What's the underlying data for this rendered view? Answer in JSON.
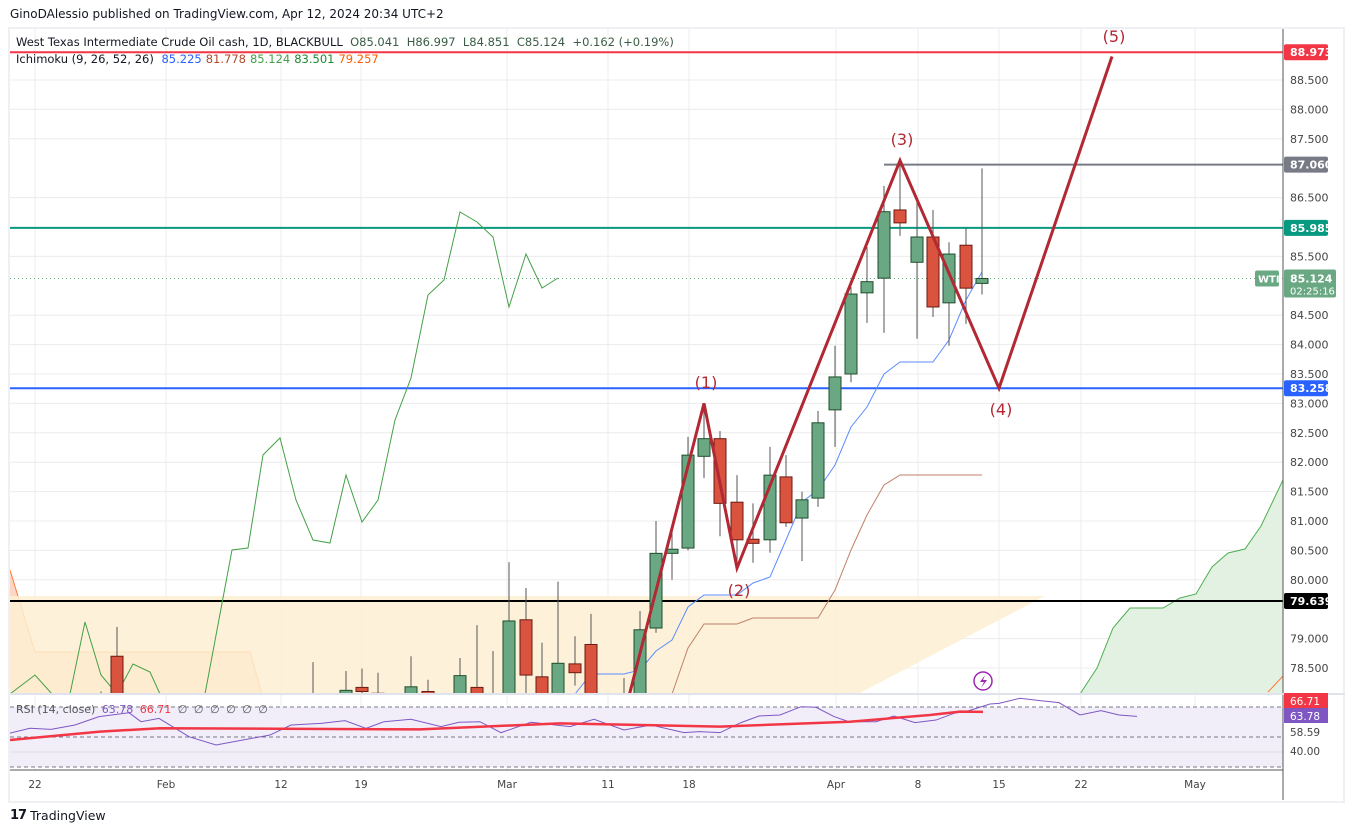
{
  "header": {
    "published": "GinoDAlessio published on TradingView.com, Apr 12, 2024 20:34 UTC+2"
  },
  "legend": {
    "symbol": "West Texas Intermediate Crude Oil cash, 1D, BLACKBULL",
    "open": "O85.041",
    "high": "H86.997",
    "low": "L84.851",
    "close": "C85.124",
    "change": "+0.162 (+0.19%)",
    "ichimoku_label": "Ichimoku (9, 26, 52, 26)",
    "ichimoku_values": [
      {
        "value": "85.225",
        "color": "#2962ff"
      },
      {
        "value": "81.778",
        "color": "#b2492c"
      },
      {
        "value": "85.124",
        "color": "#43a047"
      },
      {
        "value": "83.501",
        "color": "#1b8a2e"
      },
      {
        "value": "79.257",
        "color": "#ff5d00"
      }
    ]
  },
  "price_axis": {
    "ticks": [
      "88.500",
      "88.000",
      "87.500",
      "86.500",
      "85.500",
      "84.500",
      "84.000",
      "83.500",
      "83.000",
      "82.500",
      "82.000",
      "81.500",
      "81.000",
      "80.500",
      "80.000",
      "79.000",
      "78.500"
    ],
    "tick_values": [
      88.5,
      88.0,
      87.5,
      86.5,
      85.5,
      84.5,
      84.0,
      83.5,
      83.0,
      82.5,
      82.0,
      81.5,
      81.0,
      80.5,
      80.0,
      79.0,
      78.5
    ],
    "labels": [
      {
        "text": "88.973",
        "value": 88.973,
        "color": "#f23645"
      },
      {
        "text": "87.060",
        "value": 87.06,
        "color": "#787b86"
      },
      {
        "text": "85.985",
        "value": 85.985,
        "color": "#089981"
      },
      {
        "text": "83.258",
        "value": 83.258,
        "color": "#2962ff"
      },
      {
        "text": "79.639",
        "value": 79.639,
        "color": "#000000"
      }
    ],
    "last_price": "85.124",
    "countdown": "02:25:16",
    "symbol_tag": "WTI",
    "last_color": "#6aa884"
  },
  "time_axis": [
    "22",
    "Feb",
    "12",
    "19",
    "Mar",
    "11",
    "18",
    "Apr",
    "8",
    "15",
    "22",
    "May"
  ],
  "waves": [
    "(1)",
    "(2)",
    "(3)",
    "(4)",
    "(5)"
  ],
  "wave_prices": [
    83.0,
    80.2,
    87.13,
    83.258,
    88.9
  ],
  "colors": {
    "up": "#6aa884",
    "down": "#d9533f",
    "wave": "#b22833",
    "border": "#1e4d2b"
  },
  "candles": [
    [
      78.0,
      78.1,
      77.9,
      78.05
    ],
    [
      78.7,
      79.2,
      77.8,
      78.0
    ],
    [
      78.05,
      78.6,
      77.95,
      78.0
    ],
    [
      78.0,
      78.45,
      77.9,
      78.12
    ],
    [
      78.17,
      78.49,
      77.95,
      78.1
    ],
    [
      78.07,
      78.42,
      77.9,
      78.02
    ],
    [
      77.9,
      78.7,
      77.8,
      78.18
    ],
    [
      78.1,
      78.3,
      77.8,
      78.0
    ],
    [
      77.9,
      78.67,
      77.8,
      78.37
    ],
    [
      78.17,
      79.23,
      77.8,
      78.0
    ],
    [
      77.8,
      78.79,
      77.4,
      77.6
    ],
    [
      77.6,
      80.3,
      77.4,
      79.3
    ],
    [
      79.32,
      79.86,
      77.9,
      78.38
    ],
    [
      78.35,
      78.93,
      77.6,
      77.9
    ],
    [
      77.9,
      79.97,
      77.7,
      78.58
    ],
    [
      78.57,
      79.04,
      78.2,
      78.42
    ],
    [
      78.9,
      79.42,
      77.6,
      77.9
    ],
    [
      77.8,
      78.33,
      77.5,
      77.7
    ],
    [
      78.0,
      79.47,
      77.8,
      79.15
    ],
    [
      79.18,
      81.0,
      79.1,
      80.45
    ],
    [
      80.45,
      80.9,
      80.0,
      80.52
    ],
    [
      80.54,
      82.43,
      80.5,
      82.12
    ],
    [
      82.1,
      83.0,
      81.73,
      82.4
    ],
    [
      82.4,
      82.53,
      80.74,
      81.3
    ],
    [
      81.32,
      81.78,
      80.17,
      80.68
    ],
    [
      80.69,
      81.3,
      80.29,
      80.62
    ],
    [
      80.68,
      82.26,
      80.46,
      81.78
    ],
    [
      81.75,
      82.12,
      80.9,
      80.97
    ],
    [
      81.05,
      81.5,
      80.32,
      81.36
    ],
    [
      81.39,
      82.87,
      81.24,
      82.67
    ],
    [
      82.89,
      83.98,
      82.26,
      83.45
    ],
    [
      83.5,
      84.98,
      83.36,
      84.86
    ],
    [
      84.88,
      85.66,
      84.37,
      85.07
    ],
    [
      85.13,
      86.7,
      84.2,
      86.26
    ],
    [
      86.29,
      87.06,
      85.85,
      86.07
    ],
    [
      85.4,
      86.43,
      84.1,
      85.83
    ],
    [
      85.83,
      86.29,
      84.47,
      84.64
    ],
    [
      84.71,
      85.74,
      83.98,
      85.54
    ],
    [
      85.69,
      85.98,
      84.35,
      84.96
    ],
    [
      85.041,
      86.997,
      84.851,
      85.124
    ]
  ],
  "rsi": {
    "label": "RSI (14, close)",
    "value": "63.78",
    "ma_value": "66.71",
    "placeholders": [
      "∅",
      "∅",
      "∅",
      "∅",
      "∅",
      "∅"
    ],
    "axis_labels": [
      {
        "text": "66.71",
        "color": "#f23645"
      },
      {
        "text": "63.78",
        "color": "#7e57c2"
      },
      {
        "text": "58.59",
        "color": ""
      },
      {
        "text": "40.00",
        "color": ""
      }
    ],
    "levels": [
      70,
      50,
      30
    ],
    "rsi_values": [
      52.4,
      55.8,
      55.1,
      58,
      63.6,
      66.2,
      60.2,
      62.4,
      50.2,
      44.7,
      51.3,
      58,
      59.1,
      60.9,
      55.8,
      60.2,
      61.8,
      56.9,
      59.8,
      60.2,
      52.9,
      59.8,
      56.9,
      61.8,
      54.7,
      58,
      52.9,
      53.6,
      52.9,
      59.6,
      64,
      64.7,
      70.2,
      69.8,
      63.6,
      60.2,
      60.2,
      64,
      59.6,
      61.3,
      65.8,
      67.6,
      72,
      72.4,
      75.8,
      74.2,
      72.9,
      64.7,
      67.6,
      64.7,
      63.78
    ],
    "ma_values": [
      48,
      53.6,
      55.8,
      55.1,
      59.1,
      56.9,
      60.2,
      64.7,
      66.9,
      66.71
    ],
    "rsi_color": "#7e57c2",
    "ma_color": "#f23645"
  },
  "footer": {
    "brand": "TradingView"
  }
}
